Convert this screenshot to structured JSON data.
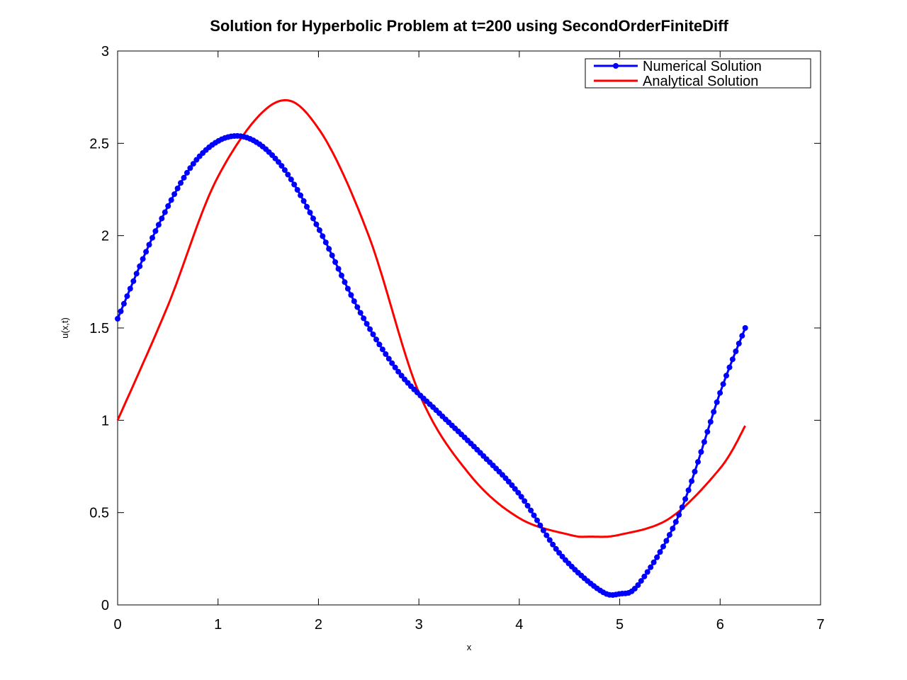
{
  "chart_data": {
    "type": "line",
    "title": "Solution for Hyperbolic Problem at t=200 using SecondOrderFiniteDiff",
    "xlabel": "x",
    "ylabel": "u(x,t)",
    "xlim": [
      0,
      7
    ],
    "ylim": [
      0,
      3
    ],
    "xticks": [
      "0",
      "1",
      "2",
      "3",
      "4",
      "5",
      "6",
      "7"
    ],
    "yticks": [
      "0",
      "0.5",
      "1",
      "1.5",
      "2",
      "2.5",
      "3"
    ],
    "grid": false,
    "legend_position": "top-right",
    "series": [
      {
        "name": "Numerical Solution",
        "color": "#0000ff",
        "marker": "circle",
        "x": [
          0,
          0.4,
          0.8,
          1.2,
          1.6,
          2.0,
          2.4,
          2.8,
          3.2,
          3.6,
          4.0,
          4.4,
          4.8,
          5.0,
          5.2,
          5.6,
          6.0,
          6.25
        ],
        "y": [
          1.55,
          2.05,
          2.42,
          2.54,
          2.4,
          2.04,
          1.6,
          1.26,
          1.04,
          0.83,
          0.6,
          0.28,
          0.08,
          0.06,
          0.12,
          0.5,
          1.15,
          1.5
        ]
      },
      {
        "name": "Analytical Solution",
        "color": "#ff0000",
        "marker": "none",
        "x": [
          0,
          0.5,
          1.0,
          1.57,
          2.0,
          2.5,
          3.0,
          3.5,
          4.0,
          4.5,
          4.71,
          5.0,
          5.5,
          6.0,
          6.25
        ],
        "y": [
          1.0,
          1.62,
          2.32,
          2.72,
          2.58,
          2.0,
          1.15,
          0.71,
          0.47,
          0.38,
          0.37,
          0.38,
          0.47,
          0.74,
          0.97
        ]
      }
    ]
  }
}
